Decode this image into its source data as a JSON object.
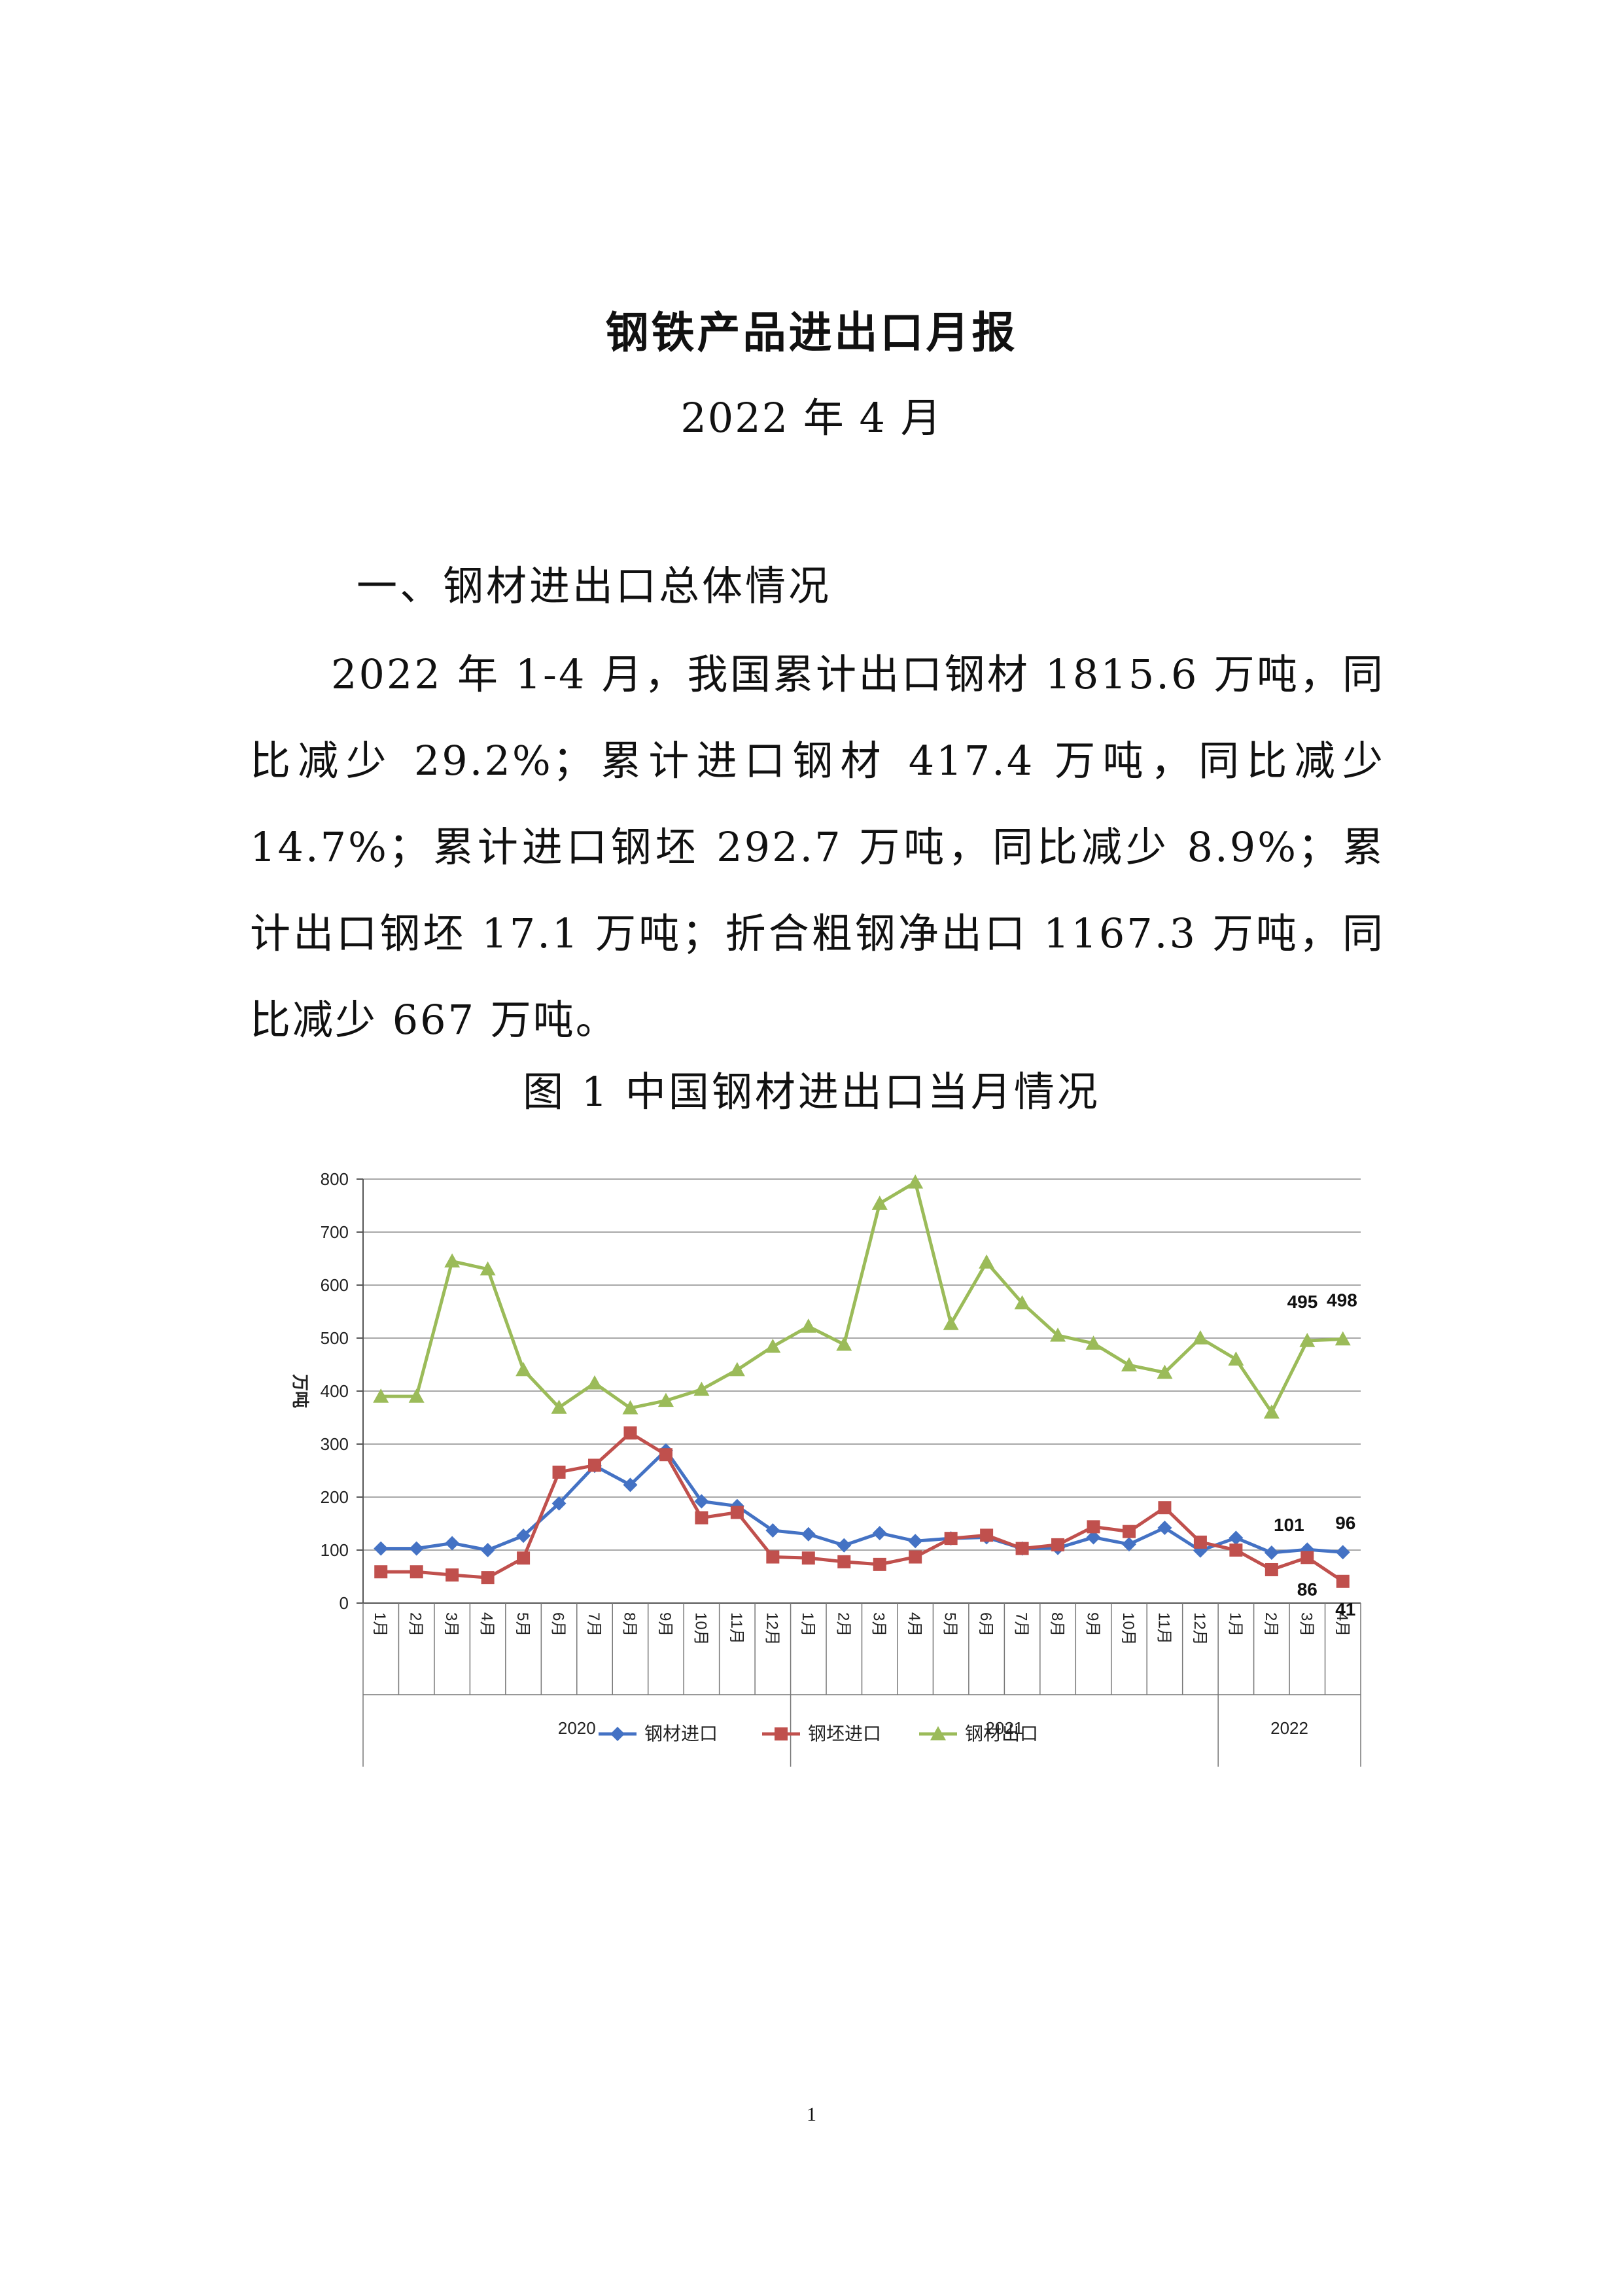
{
  "document": {
    "title": "钢铁产品进出口月报",
    "subtitle": "2022 年 4 月",
    "section_heading": "一、钢材进出口总体情况",
    "paragraph": "2022 年 1-4 月，我国累计出口钢材 1815.6 万吨，同比减少 29.2%；累计进口钢材 417.4 万吨，同比减少 14.7%；累计进口钢坯 292.7 万吨，同比减少 8.9%；累计出口钢坯 17.1 万吨；折合粗钢净出口 1167.3 万吨，同比减少 667 万吨。",
    "figure_caption": "图 1  中国钢材进出口当月情况",
    "page_number": "1"
  },
  "chart_data": {
    "type": "line",
    "ylabel": "万吨",
    "ylim": [
      0,
      800
    ],
    "yticks": [
      "0",
      "100",
      "200",
      "300",
      "400",
      "500",
      "600",
      "700",
      "800"
    ],
    "grid": true,
    "legend_position": "bottom",
    "groups": [
      {
        "label": "2020",
        "months": [
          "1月",
          "2月",
          "3月",
          "4月",
          "5月",
          "6月",
          "7月",
          "8月",
          "9月",
          "10月",
          "11月",
          "12月"
        ]
      },
      {
        "label": "2021",
        "months": [
          "1月",
          "2月",
          "3月",
          "4月",
          "5月",
          "6月",
          "7月",
          "8月",
          "9月",
          "10月",
          "11月",
          "12月"
        ]
      },
      {
        "label": "2022",
        "months": [
          "1月",
          "2月",
          "3月",
          "4月"
        ]
      }
    ],
    "series": [
      {
        "name": "钢材进口",
        "color": "#4472C4",
        "marker": "diamond",
        "values": [
          103,
          103,
          113,
          100,
          127,
          188,
          259,
          223,
          288,
          192,
          183,
          137,
          130,
          109,
          132,
          117,
          122,
          124,
          103,
          104,
          124,
          111,
          142,
          99,
          123,
          95,
          101,
          96
        ],
        "labels": [
          {
            "index": 26,
            "text": "101"
          },
          {
            "index": 27,
            "text": "96"
          }
        ]
      },
      {
        "name": "钢坯进口",
        "color": "#C0504D",
        "marker": "square",
        "values": [
          59,
          59,
          53,
          48,
          85,
          247,
          260,
          321,
          280,
          161,
          171,
          87,
          85,
          78,
          73,
          87,
          122,
          128,
          103,
          110,
          144,
          135,
          180,
          115,
          100,
          63,
          86,
          41
        ],
        "labels": [
          {
            "index": 26,
            "text": "86"
          },
          {
            "index": 27,
            "text": "41"
          }
        ]
      },
      {
        "name": "钢材出口",
        "color": "#9BBB59",
        "marker": "triangle",
        "values": [
          390,
          390,
          645,
          630,
          440,
          369,
          415,
          368,
          382,
          403,
          440,
          484,
          522,
          488,
          754,
          794,
          527,
          643,
          566,
          505,
          490,
          449,
          435,
          500,
          460,
          360,
          495,
          498
        ],
        "labels": [
          {
            "index": 26,
            "text": "495"
          },
          {
            "index": 27,
            "text": "498"
          }
        ]
      }
    ]
  }
}
